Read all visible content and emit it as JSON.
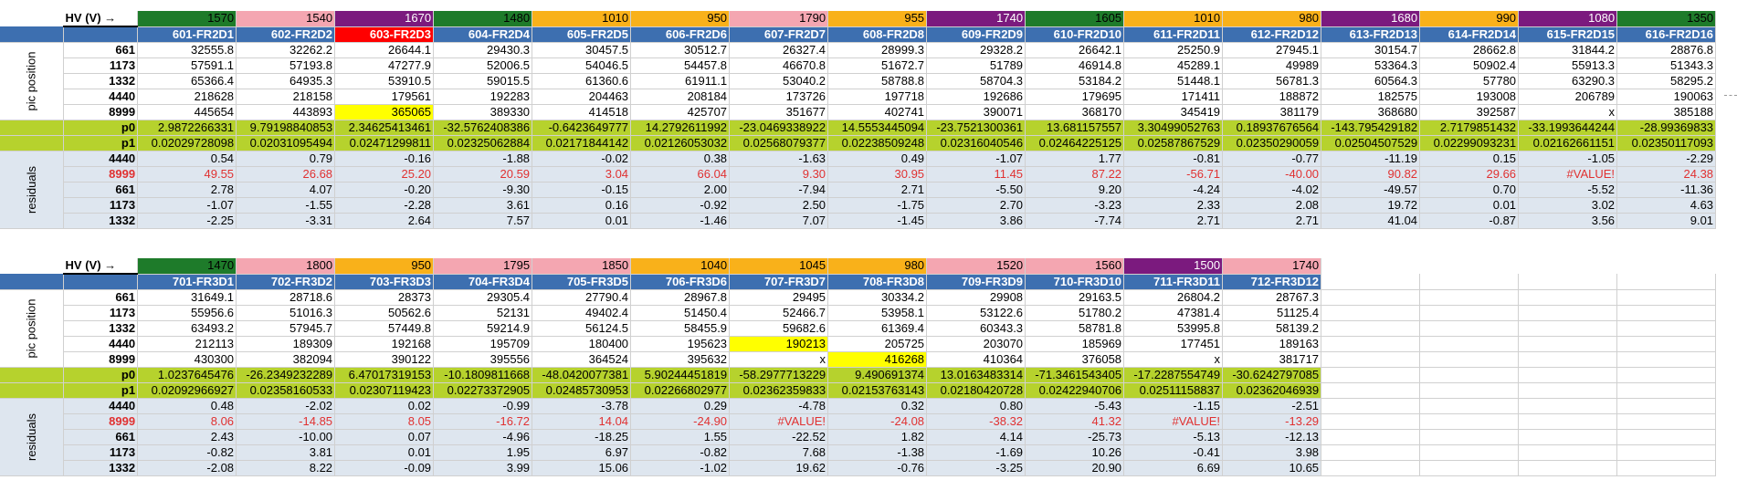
{
  "labels": {
    "hv": "HV (V) →",
    "pic_position": "pic position",
    "residuals": "residuals",
    "p0": "p0",
    "p1": "p1"
  },
  "colors": {
    "green": "#1e7b2a",
    "pink": "#f4a6b1",
    "violet": "#7b1a7e",
    "orange": "#f9b11a",
    "name_bar": "#3d6fb0",
    "fit_row": "#b6d22d",
    "residual_row": "#dee6ef",
    "highlight_yellow": "#ffff00",
    "highlight_red": "#ff0000",
    "negative_red": "#e03131"
  },
  "block1": {
    "hv": [
      {
        "v": "1570",
        "c": "g"
      },
      {
        "v": "1540",
        "c": "p"
      },
      {
        "v": "1670",
        "c": "v"
      },
      {
        "v": "1480",
        "c": "g"
      },
      {
        "v": "1010",
        "c": "o"
      },
      {
        "v": "950",
        "c": "o"
      },
      {
        "v": "1790",
        "c": "p"
      },
      {
        "v": "955",
        "c": "o"
      },
      {
        "v": "1740",
        "c": "v"
      },
      {
        "v": "1605",
        "c": "g"
      },
      {
        "v": "1010",
        "c": "o"
      },
      {
        "v": "980",
        "c": "o"
      },
      {
        "v": "1680",
        "c": "v"
      },
      {
        "v": "990",
        "c": "o"
      },
      {
        "v": "1080",
        "c": "v"
      },
      {
        "v": "1350",
        "c": "g"
      }
    ],
    "names": [
      "601-FR2D1",
      "602-FR2D2",
      "603-FR2D3",
      "604-FR2D4",
      "605-FR2D5",
      "606-FR2D6",
      "607-FR2D7",
      "608-FR2D8",
      "609-FR2D9",
      "610-FR2D10",
      "611-FR2D11",
      "612-FR2D12",
      "613-FR2D13",
      "614-FR2D14",
      "615-FR2D15",
      "616-FR2D16"
    ],
    "pic": [
      {
        "label": "661",
        "values": [
          "32555.8",
          "32262.2",
          "26644.1",
          "29430.3",
          "30457.5",
          "30512.7",
          "26327.4",
          "28999.3",
          "29328.2",
          "26642.1",
          "25250.9",
          "27945.1",
          "30154.7",
          "28662.8",
          "31844.2",
          "28876.8"
        ]
      },
      {
        "label": "1173",
        "values": [
          "57591.1",
          "57193.8",
          "47277.9",
          "52006.5",
          "54046.5",
          "54457.8",
          "46670.8",
          "51672.7",
          "51789",
          "46914.8",
          "45289.1",
          "49989",
          "53364.3",
          "50902.4",
          "55913.3",
          "51343.3"
        ]
      },
      {
        "label": "1332",
        "values": [
          "65366.4",
          "64935.3",
          "53910.5",
          "59015.5",
          "61360.6",
          "61911.1",
          "53040.2",
          "58788.8",
          "58704.3",
          "53184.2",
          "51448.1",
          "56781.3",
          "60564.3",
          "57780",
          "63290.3",
          "58295.2"
        ]
      },
      {
        "label": "4440",
        "values": [
          "218628",
          "218158",
          "179561",
          "192283",
          "204463",
          "208184",
          "173726",
          "197718",
          "192686",
          "179695",
          "171411",
          "188872",
          "182575",
          "193008",
          "206789",
          "190063"
        ]
      },
      {
        "label": "8999",
        "values": [
          "445654",
          "443893",
          "365065",
          "389330",
          "414518",
          "425707",
          "351677",
          "402741",
          "390071",
          "368170",
          "345419",
          "381179",
          "368680",
          "392587",
          "x",
          "385188"
        ]
      }
    ],
    "p0": [
      "2.9872266331",
      "9.79198840853",
      "2.34625413461",
      "-32.5762408386",
      "-0.6423649777",
      "14.2792611992",
      "-23.0469338922",
      "14.5553445094",
      "-23.7521300361",
      "13.681157557",
      "3.30499052763",
      "0.18937676564",
      "-143.795429182",
      "2.7179851432",
      "-33.1993644244",
      "-28.99369833"
    ],
    "p1": [
      "0.02029728098",
      "0.02031095494",
      "0.02471299811",
      "0.02325062884",
      "0.02171844142",
      "0.02126053032",
      "0.02568079377",
      "0.02238509248",
      "0.02316040546",
      "0.02464225125",
      "0.02587867529",
      "0.02350290059",
      "0.02504507529",
      "0.02299093231",
      "0.02162661151",
      "0.02350117093"
    ],
    "res": [
      {
        "label": "4440",
        "values": [
          "0.54",
          "0.79",
          "-0.16",
          "-1.88",
          "-0.02",
          "0.38",
          "-1.63",
          "0.49",
          "-1.07",
          "1.77",
          "-0.81",
          "-0.77",
          "-11.19",
          "0.15",
          "-1.05",
          "-2.29"
        ]
      },
      {
        "label": "8999",
        "red": true,
        "values": [
          "49.55",
          "26.68",
          "25.20",
          "20.59",
          "3.04",
          "66.04",
          "9.30",
          "30.95",
          "11.45",
          "87.22",
          "-56.71",
          "-40.00",
          "90.82",
          "29.66",
          "#VALUE!",
          "24.38"
        ]
      },
      {
        "label": "661",
        "values": [
          "2.78",
          "4.07",
          "-0.20",
          "-9.30",
          "-0.15",
          "2.00",
          "-7.94",
          "2.71",
          "-5.50",
          "9.20",
          "-4.24",
          "-4.02",
          "-49.57",
          "0.70",
          "-5.52",
          "-11.36"
        ]
      },
      {
        "label": "1173",
        "values": [
          "-1.07",
          "-1.55",
          "-2.28",
          "3.61",
          "0.16",
          "-0.92",
          "2.50",
          "-1.75",
          "2.70",
          "-3.23",
          "2.33",
          "2.08",
          "19.72",
          "0.01",
          "3.02",
          "4.63"
        ]
      },
      {
        "label": "1332",
        "values": [
          "-2.25",
          "-3.31",
          "2.64",
          "7.57",
          "0.01",
          "-1.46",
          "7.07",
          "-1.45",
          "3.86",
          "-7.74",
          "2.71",
          "2.71",
          "41.04",
          "-0.87",
          "3.56",
          "9.01"
        ]
      }
    ]
  },
  "block2": {
    "hv": [
      {
        "v": "1470",
        "c": "g"
      },
      {
        "v": "1800",
        "c": "p"
      },
      {
        "v": "950",
        "c": "o"
      },
      {
        "v": "1795",
        "c": "p"
      },
      {
        "v": "1850",
        "c": "p"
      },
      {
        "v": "1040",
        "c": "o"
      },
      {
        "v": "1045",
        "c": "o"
      },
      {
        "v": "980",
        "c": "o"
      },
      {
        "v": "1520",
        "c": "p"
      },
      {
        "v": "1560",
        "c": "p"
      },
      {
        "v": "1500",
        "c": "v"
      },
      {
        "v": "1740",
        "c": "p"
      }
    ],
    "names": [
      "701-FR3D1",
      "702-FR3D2",
      "703-FR3D3",
      "704-FR3D4",
      "705-FR3D5",
      "706-FR3D6",
      "707-FR3D7",
      "708-FR3D8",
      "709-FR3D9",
      "710-FR3D10",
      "711-FR3D11",
      "712-FR3D12"
    ],
    "pic": [
      {
        "label": "661",
        "values": [
          "31649.1",
          "28718.6",
          "28373",
          "29305.4",
          "27790.4",
          "28967.8",
          "29495",
          "30334.2",
          "29908",
          "29163.5",
          "26804.2",
          "28767.3"
        ]
      },
      {
        "label": "1173",
        "values": [
          "55956.6",
          "51016.3",
          "50562.6",
          "52131",
          "49402.4",
          "51450.4",
          "52466.7",
          "53958.1",
          "53122.6",
          "51780.2",
          "47381.4",
          "51125.4"
        ]
      },
      {
        "label": "1332",
        "values": [
          "63493.2",
          "57945.7",
          "57449.8",
          "59214.9",
          "56124.5",
          "58455.9",
          "59682.6",
          "61369.4",
          "60343.3",
          "58781.8",
          "53995.8",
          "58139.2"
        ]
      },
      {
        "label": "4440",
        "values": [
          "212113",
          "189309",
          "192168",
          "195709",
          "180400",
          "195623",
          "190213",
          "205725",
          "203070",
          "185969",
          "177451",
          "189163"
        ]
      },
      {
        "label": "8999",
        "values": [
          "430300",
          "382094",
          "390122",
          "395556",
          "364524",
          "395632",
          "x",
          "416268",
          "410364",
          "376058",
          "x",
          "381717"
        ]
      }
    ],
    "p0": [
      "1.0237645476",
      "-26.2349232289",
      "6.47017319153",
      "-10.1809811668",
      "-48.0420077381",
      "5.90244451819",
      "-58.2977713229",
      "9.490691374",
      "13.0163483314",
      "-71.3461543405",
      "-17.2287554749",
      "-30.6242797085"
    ],
    "p1": [
      "0.02092966927",
      "0.02358160533",
      "0.02307119423",
      "0.02273372905",
      "0.02485730953",
      "0.02266802977",
      "0.02362359833",
      "0.02153763143",
      "0.02180420728",
      "0.02422940706",
      "0.02511158837",
      "0.02362046939"
    ],
    "res": [
      {
        "label": "4440",
        "values": [
          "0.48",
          "-2.02",
          "0.02",
          "-0.99",
          "-3.78",
          "0.29",
          "-4.78",
          "0.32",
          "0.80",
          "-5.43",
          "-1.15",
          "-2.51"
        ]
      },
      {
        "label": "8999",
        "red": true,
        "values": [
          "8.06",
          "-14.85",
          "8.05",
          "-16.72",
          "14.04",
          "-24.90",
          "#VALUE!",
          "-24.08",
          "-38.32",
          "41.32",
          "#VALUE!",
          "-13.29"
        ]
      },
      {
        "label": "661",
        "values": [
          "2.43",
          "-10.00",
          "0.07",
          "-4.96",
          "-18.25",
          "1.55",
          "-22.52",
          "1.82",
          "4.14",
          "-25.73",
          "-5.13",
          "-12.13"
        ]
      },
      {
        "label": "1173",
        "values": [
          "-0.82",
          "3.81",
          "0.01",
          "1.95",
          "6.97",
          "-0.82",
          "7.68",
          "-1.38",
          "-1.69",
          "10.26",
          "-0.41",
          "3.98"
        ]
      },
      {
        "label": "1332",
        "values": [
          "-2.08",
          "8.22",
          "-0.09",
          "3.99",
          "15.06",
          "-1.02",
          "19.62",
          "-0.76",
          "-3.25",
          "20.90",
          "6.69",
          "10.65"
        ]
      }
    ]
  }
}
